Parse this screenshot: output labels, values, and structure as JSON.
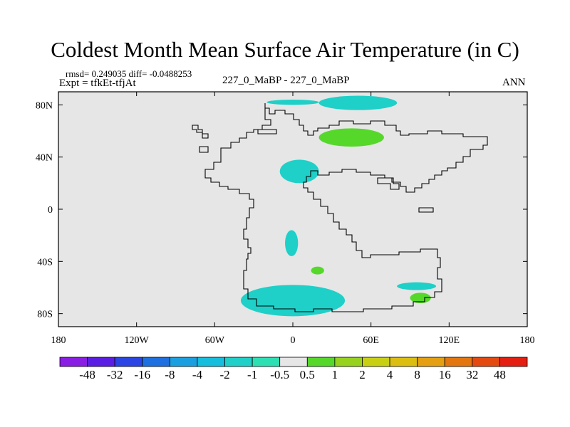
{
  "title": "Coldest Month Mean Surface Air Temperature (in C)",
  "stats_text": "rmsd= 0.249035 diff= -0.0488253",
  "experiment_text": "Expt = tfkEt-tfjAt",
  "center_label": "227_0_MaBP - 227_0_MaBP",
  "season_label": "ANN",
  "chart_data": {
    "type": "heatmap",
    "title": "Coldest Month Mean Surface Air Temperature (in C)",
    "x_ticks": [
      {
        "value": -180,
        "label": "180"
      },
      {
        "value": -120,
        "label": "120W"
      },
      {
        "value": -60,
        "label": "60W"
      },
      {
        "value": 0,
        "label": "0"
      },
      {
        "value": 60,
        "label": "60E"
      },
      {
        "value": 120,
        "label": "120E"
      },
      {
        "value": 180,
        "label": "180"
      }
    ],
    "y_ticks": [
      {
        "value": 80,
        "label": "80N"
      },
      {
        "value": 40,
        "label": "40N"
      },
      {
        "value": 0,
        "label": "0"
      },
      {
        "value": -40,
        "label": "40S"
      },
      {
        "value": -80,
        "label": "80S"
      }
    ],
    "xlim": [
      -180,
      180
    ],
    "ylim": [
      -90,
      90
    ],
    "background_color": "#e6e6e6",
    "colorbar": {
      "labels": [
        "-48",
        "-32",
        "-16",
        "-8",
        "-4",
        "-2",
        "-1",
        "-0.5",
        "0.5",
        "1",
        "2",
        "4",
        "8",
        "16",
        "32",
        "48"
      ],
      "colors": [
        "#8a1de3",
        "#5b1de3",
        "#2a45e3",
        "#1e6fe0",
        "#1aa0e0",
        "#14bedc",
        "#1ed0c8",
        "#2ce0b4",
        "#e6e6e6",
        "#55d82a",
        "#96d21e",
        "#c8d014",
        "#dcbe10",
        "#e4a010",
        "#e47610",
        "#e44a10",
        "#e41e10"
      ]
    },
    "anomaly_regions": [
      {
        "level": "-1",
        "color": "#1ed0c8",
        "lon": [
          -20,
          20
        ],
        "lat": [
          80,
          84
        ]
      },
      {
        "level": "-1",
        "color": "#1ed0c8",
        "lon": [
          20,
          80
        ],
        "lat": [
          76,
          87
        ]
      },
      {
        "level": "0.5",
        "color": "#55d82a",
        "lon": [
          20,
          70
        ],
        "lat": [
          48,
          62
        ]
      },
      {
        "level": "-1",
        "color": "#1ed0c8",
        "lon": [
          -10,
          20
        ],
        "lat": [
          20,
          38
        ]
      },
      {
        "level": "-1",
        "color": "#1ed0c8",
        "lon": [
          -6,
          4
        ],
        "lat": [
          -36,
          -16
        ]
      },
      {
        "level": "0.5",
        "color": "#55d82a",
        "lon": [
          14,
          24
        ],
        "lat": [
          -50,
          -44
        ]
      },
      {
        "level": "-1",
        "color": "#1ed0c8",
        "lon": [
          -40,
          40
        ],
        "lat": [
          -82,
          -58
        ]
      },
      {
        "level": "-1",
        "color": "#1ed0c8",
        "lon": [
          80,
          110
        ],
        "lat": [
          -62,
          -56
        ]
      },
      {
        "level": "0.5",
        "color": "#55d82a",
        "lon": [
          90,
          106
        ],
        "lat": [
          -72,
          -64
        ]
      }
    ],
    "grid": false
  }
}
